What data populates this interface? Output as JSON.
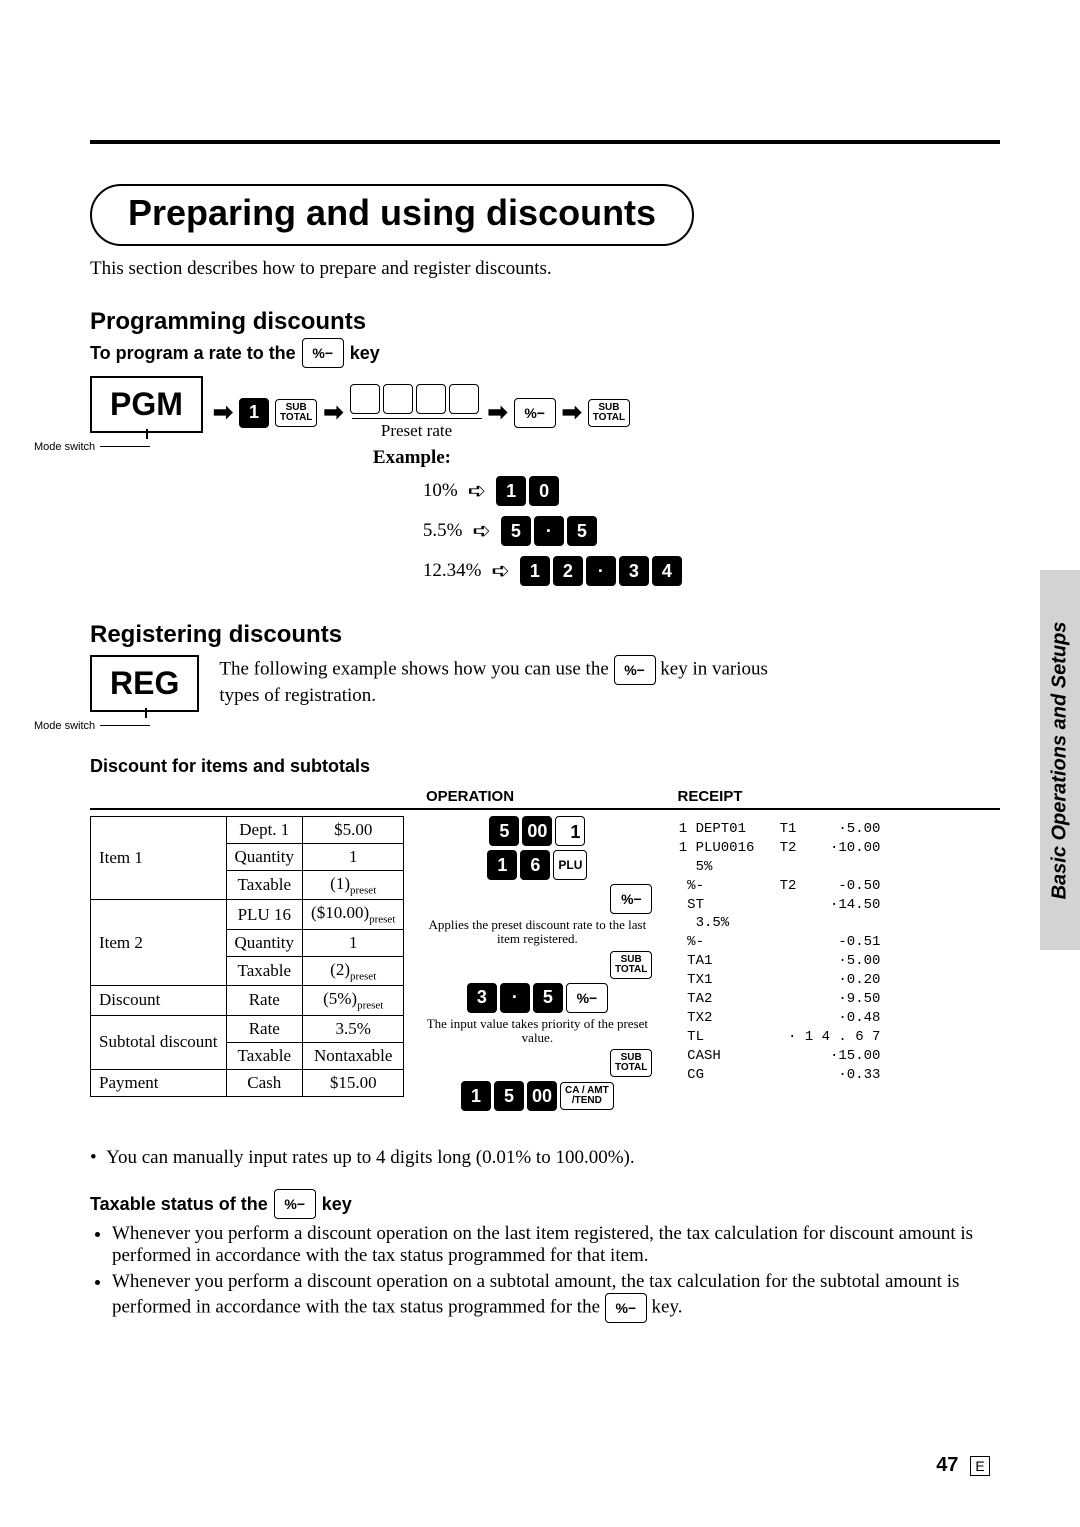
{
  "title": "Preparing and using discounts",
  "intro": "This section describes how to prepare and register discounts.",
  "side_tab": "Basic Operations and Setups",
  "page_number": "47",
  "page_letter": "E",
  "prog": {
    "heading": "Programming discounts",
    "subhead_prefix": "To program a rate to the ",
    "subhead_suffix": " key",
    "mode_label": "PGM",
    "mode_switch": "Mode switch",
    "preset_rate": "Preset rate",
    "arrow": "➡",
    "open_arrow": "➪",
    "keys": {
      "one": "1",
      "subtotal_top": "SUB",
      "subtotal_bot": "TOTAL",
      "pct": "%−"
    },
    "example_label": "Example:",
    "examples": [
      {
        "label": "10%",
        "keys": [
          "1",
          "0"
        ]
      },
      {
        "label": "5.5%",
        "keys": [
          "5",
          "·",
          "5"
        ]
      },
      {
        "label": "12.34%",
        "keys": [
          "1",
          "2",
          "·",
          "3",
          "4"
        ]
      }
    ]
  },
  "reg": {
    "heading": "Registering discounts",
    "body_prefix": "The following example shows how you can use the ",
    "body_suffix": " key in various types of registration.",
    "mode_label": "REG",
    "mode_switch": "Mode switch"
  },
  "disc": {
    "heading": "Discount for items and subtotals",
    "operation": "OPERATION",
    "receipt": "RECEIPT",
    "table": [
      [
        "Item 1",
        "Dept. 1",
        "$5.00"
      ],
      [
        "",
        "Quantity",
        "1"
      ],
      [
        "",
        "Taxable",
        "(1)<sub>preset</sub>"
      ],
      [
        "Item 2",
        "PLU 16",
        "($10.00)<sub>preset</sub>"
      ],
      [
        "",
        "Quantity",
        "1"
      ],
      [
        "",
        "Taxable",
        "(2)<sub>preset</sub>"
      ],
      [
        "Discount",
        "Rate",
        "(5%)<sub>preset</sub>"
      ],
      [
        "Subtotal discount",
        "Rate",
        "3.5%"
      ],
      [
        "",
        "Taxable",
        "Nontaxable"
      ],
      [
        "Payment",
        "Cash",
        "$15.00"
      ]
    ],
    "op_caption1": "Applies the preset discount rate to the last item registered.",
    "op_caption2": "The input value takes priority of the preset value.",
    "op_seq1_keys": [
      "5",
      "00"
    ],
    "op_seq1_key_end": "1",
    "op_seq2_keys": [
      "1",
      "6"
    ],
    "op_seq2_key_end": "PLU",
    "op_seq3_key": "%−",
    "op_seq4_key_top": "SUB",
    "op_seq4_key_bot": "TOTAL",
    "op_seq5_keys": [
      "3",
      "·",
      "5"
    ],
    "op_seq5_end": "%−",
    "op_seq6_top": "SUB",
    "op_seq6_bot": "TOTAL",
    "op_seq7_keys": [
      "1",
      "5",
      "00"
    ],
    "op_seq7_end_top": "CA / AMT",
    "op_seq7_end_bot": "/TEND",
    "receipt_text": " 1 DEPT01    T1     ·5.00\n 1 PLU0016   T2    ·10.00\n   5%\n  %-         T2     -0.50\n  ST               ·14.50\n   3.5%\n  %-                -0.51\n  TA1               ·5.00\n  TX1               ·0.20\n  TA2               ·9.50\n  TX2               ·0.48\n  TL          · 1 4 . 6 7\n  CASH             ·15.00\n  CG                ·0.33"
  },
  "manual_note": "You can manually input rates up to 4 digits long (0.01% to 100.00%).",
  "tax": {
    "heading_prefix": "Taxable status of the ",
    "heading_suffix": " key",
    "bullets": [
      "Whenever you perform a discount operation on the last item registered, the tax calculation for discount amount is performed in accordance with the tax status programmed for that item.",
      "Whenever you perform a discount operation on a subtotal amount, the tax calculation for the subtotal amount is performed in accordance with the tax status programmed for the "
    ],
    "bullet2_suffix": " key."
  }
}
